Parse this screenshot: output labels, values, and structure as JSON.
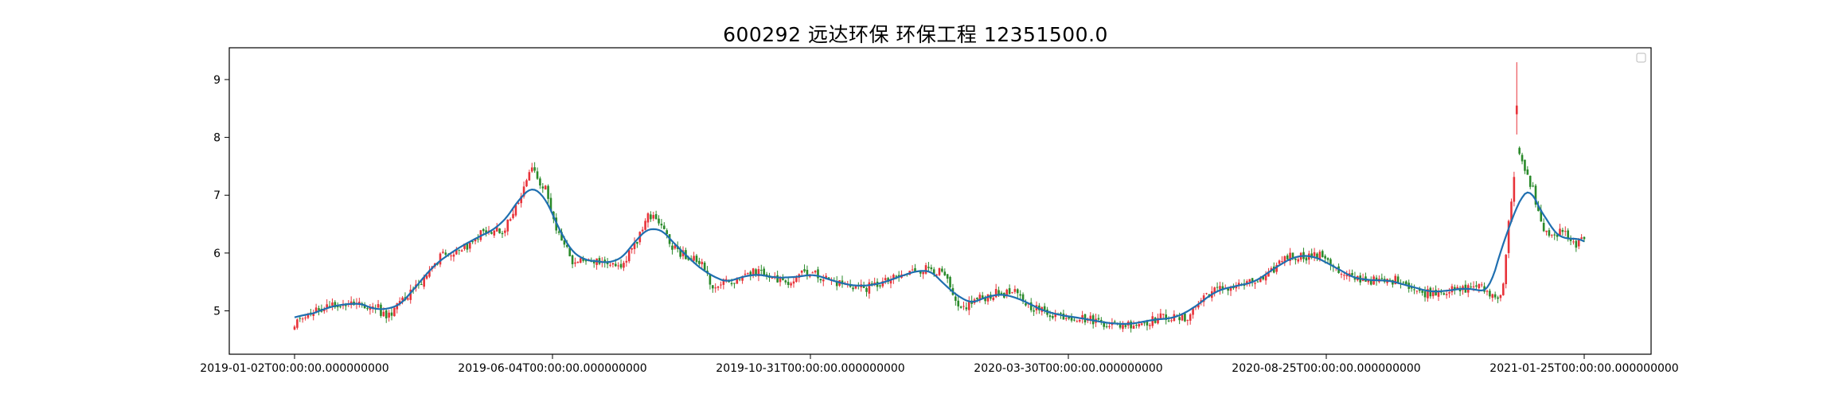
{
  "chart_data": {
    "type": "candlestick",
    "title": "600292 远达环保 环保工程 12351500.0",
    "xlabel": "",
    "ylabel": "",
    "ylim": [
      4.25,
      9.55
    ],
    "yticks": [
      5,
      6,
      7,
      8,
      9
    ],
    "ytick_labels": [
      "5",
      "6",
      "7",
      "8",
      "9"
    ],
    "x_tick_labels": [
      "2019-01-02T00:00:00.000000000",
      "2019-06-04T00:00:00.000000000",
      "2019-10-31T00:00:00.000000000",
      "2020-03-30T00:00:00.000000000",
      "2020-08-25T00:00:00.000000000",
      "2021-01-25T00:00:00.000000000"
    ],
    "legend": "top-right (empty)",
    "colors": {
      "up": "#e8333a",
      "down": "#2a8a2a",
      "ma": "#1f6fb0",
      "frame": "#000000"
    },
    "keypoints": [
      [
        0,
        4.8
      ],
      [
        8,
        5.0
      ],
      [
        20,
        5.15
      ],
      [
        30,
        5.1
      ],
      [
        34,
        4.85
      ],
      [
        45,
        5.4
      ],
      [
        55,
        6.0
      ],
      [
        62,
        6.05
      ],
      [
        70,
        6.4
      ],
      [
        78,
        6.4
      ],
      [
        83,
        6.9
      ],
      [
        88,
        7.45
      ],
      [
        93,
        7.1
      ],
      [
        98,
        6.3
      ],
      [
        103,
        5.85
      ],
      [
        112,
        5.9
      ],
      [
        121,
        5.75
      ],
      [
        127,
        6.2
      ],
      [
        131,
        6.7
      ],
      [
        135,
        6.55
      ],
      [
        140,
        6.1
      ],
      [
        145,
        5.95
      ],
      [
        150,
        5.85
      ],
      [
        155,
        5.45
      ],
      [
        160,
        5.5
      ],
      [
        165,
        5.55
      ],
      [
        172,
        5.7
      ],
      [
        177,
        5.6
      ],
      [
        182,
        5.45
      ],
      [
        188,
        5.7
      ],
      [
        195,
        5.6
      ],
      [
        200,
        5.5
      ],
      [
        205,
        5.45
      ],
      [
        212,
        5.4
      ],
      [
        219,
        5.5
      ],
      [
        225,
        5.6
      ],
      [
        230,
        5.7
      ],
      [
        236,
        5.75
      ],
      [
        241,
        5.6
      ],
      [
        246,
        5.0
      ],
      [
        253,
        5.2
      ],
      [
        260,
        5.3
      ],
      [
        267,
        5.3
      ],
      [
        272,
        5.1
      ],
      [
        280,
        4.95
      ],
      [
        295,
        4.85
      ],
      [
        305,
        4.75
      ],
      [
        315,
        4.8
      ],
      [
        322,
        4.9
      ],
      [
        330,
        4.85
      ],
      [
        338,
        5.3
      ],
      [
        345,
        5.4
      ],
      [
        352,
        5.45
      ],
      [
        360,
        5.55
      ],
      [
        367,
        5.95
      ],
      [
        375,
        5.95
      ],
      [
        382,
        5.95
      ],
      [
        388,
        5.6
      ],
      [
        396,
        5.55
      ],
      [
        403,
        5.5
      ],
      [
        410,
        5.55
      ],
      [
        417,
        5.3
      ],
      [
        424,
        5.35
      ],
      [
        432,
        5.35
      ],
      [
        438,
        5.45
      ],
      [
        443,
        5.3
      ],
      [
        446,
        5.2
      ],
      [
        448,
        5.5
      ],
      [
        450,
        6.5
      ],
      [
        453,
        7.8
      ],
      [
        456,
        7.4
      ],
      [
        459,
        7.1
      ],
      [
        462,
        6.5
      ],
      [
        466,
        6.25
      ],
      [
        470,
        6.4
      ],
      [
        473,
        6.15
      ],
      [
        478,
        6.2
      ]
    ],
    "bar_count": 479,
    "seed": 292,
    "spike": {
      "index": 453,
      "open": 8.4,
      "close": 8.55,
      "high": 9.3,
      "low": 8.05
    }
  }
}
